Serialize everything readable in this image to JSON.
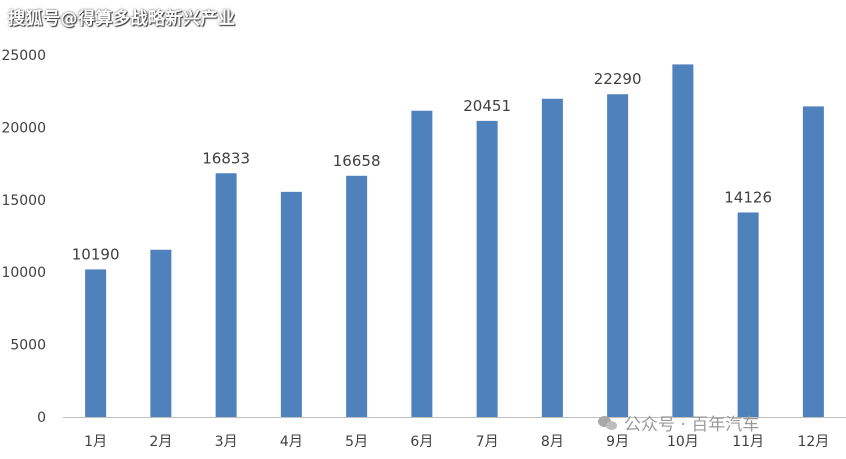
{
  "watermarks": {
    "top": "搜狐号@得算多战略新兴产业",
    "bottom": "公众号 · 百年汽车",
    "bottom_icon": "wechat-icon"
  },
  "chart_data": {
    "type": "bar",
    "title": "",
    "xlabel": "",
    "ylabel": "",
    "categories": [
      "1月",
      "2月",
      "3月",
      "4月",
      "5月",
      "6月",
      "7月",
      "8月",
      "9月",
      "10月",
      "11月",
      "12月"
    ],
    "values": [
      10190,
      11550,
      16833,
      15550,
      16658,
      21150,
      20451,
      21980,
      22290,
      24350,
      14126,
      21450
    ],
    "data_labels": [
      "10190",
      "",
      "16833",
      "",
      "16658",
      "",
      "20451",
      "",
      "22290",
      "",
      "14126",
      ""
    ],
    "ylim": [
      0,
      25000
    ],
    "yticks": [
      0,
      5000,
      10000,
      15000,
      20000,
      25000
    ],
    "grid": false,
    "legend": "none",
    "bar_color": "#4f81bd",
    "axis_color": "#bfbfbf",
    "text_color": "#404040"
  }
}
